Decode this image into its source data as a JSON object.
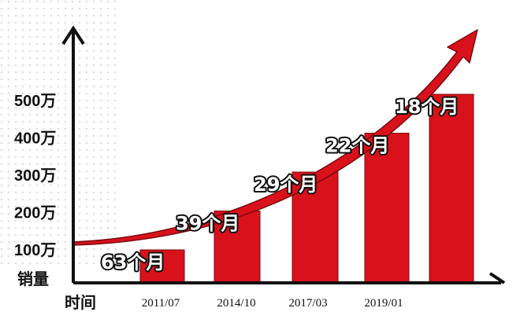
{
  "chart_data": {
    "type": "bar",
    "categories": [
      "2011/07",
      "2014/10",
      "2017/03",
      "2019/01",
      ""
    ],
    "values": [
      100,
      200,
      300,
      400,
      500
    ],
    "data_labels": [
      "63个月",
      "39个月",
      "29个月",
      "22个月",
      "18个月"
    ],
    "y_tick_labels": [
      "100万",
      "200万",
      "300万",
      "400万",
      "500万"
    ],
    "xlabel": "时间",
    "ylabel": "销量",
    "ylim": [
      0,
      500
    ],
    "grid": false,
    "legend": "none",
    "trend_arrow": true
  },
  "colors": {
    "bar": "#d9111b",
    "bar_edge": "#7a0a0e",
    "arrow": "#d9111b",
    "axis": "#111111"
  }
}
